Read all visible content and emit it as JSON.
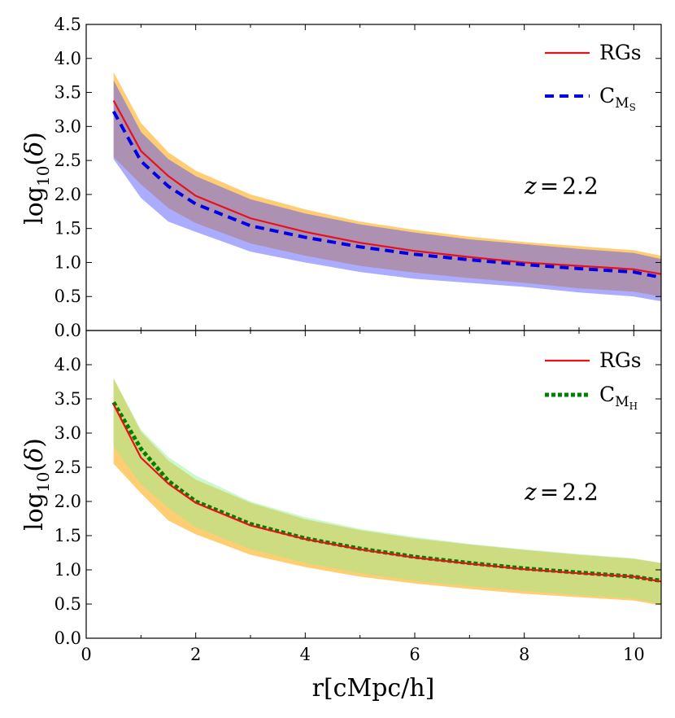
{
  "chart_data": [
    {
      "type": "line",
      "panel": "top",
      "ylabel_base": "log",
      "ylabel_sub": "10",
      "ylabel_arg": "δ",
      "ylabel": "log10(δ)",
      "xlabel": "",
      "xlim": [
        0,
        10.5
      ],
      "ylim": [
        0,
        4.5
      ],
      "yticks": [
        "0.0",
        "0.5",
        "1.0",
        "1.5",
        "2.0",
        "2.5",
        "3.0",
        "3.5",
        "4.0",
        "4.5"
      ],
      "annotation": {
        "var": "z",
        "eq": "=",
        "val": "2.2"
      },
      "legend_position": "top-right",
      "x": [
        0.5,
        1.0,
        1.5,
        2.0,
        3.0,
        4.0,
        5.0,
        6.0,
        7.0,
        8.0,
        9.0,
        10.0,
        10.5
      ],
      "series": [
        {
          "name": "RGs",
          "legend_main": "RGs",
          "legend_sub": "",
          "legend_subsub": "",
          "color": "#e8101a",
          "style": "solid",
          "values": [
            3.38,
            2.64,
            2.27,
            1.98,
            1.65,
            1.45,
            1.29,
            1.17,
            1.08,
            1.0,
            0.95,
            0.9,
            0.83
          ],
          "band": {
            "color": "#ffa500",
            "upper": [
              3.8,
              3.05,
              2.62,
              2.35,
              2.0,
              1.78,
              1.6,
              1.48,
              1.38,
              1.3,
              1.24,
              1.18,
              1.1
            ],
            "lower": [
              2.55,
              2.15,
              1.8,
              1.58,
              1.28,
              1.1,
              0.95,
              0.85,
              0.77,
              0.7,
              0.62,
              0.57,
              0.5
            ]
          }
        },
        {
          "name": "CMS",
          "legend_main": "C",
          "legend_sub": "M",
          "legend_subsub": "S",
          "color": "#0000e6",
          "style": "dashed",
          "values": [
            3.22,
            2.49,
            2.12,
            1.86,
            1.54,
            1.37,
            1.23,
            1.12,
            1.04,
            0.97,
            0.91,
            0.86,
            0.78
          ],
          "band": {
            "color": "#4848ff",
            "upper": [
              3.68,
              2.92,
              2.52,
              2.27,
              1.93,
              1.72,
              1.56,
              1.44,
              1.34,
              1.27,
              1.2,
              1.14,
              1.05
            ],
            "lower": [
              2.52,
              1.95,
              1.6,
              1.45,
              1.16,
              1.0,
              0.86,
              0.76,
              0.7,
              0.64,
              0.56,
              0.5,
              0.43
            ]
          }
        }
      ]
    },
    {
      "type": "line",
      "panel": "bottom",
      "ylabel_base": "log",
      "ylabel_sub": "10",
      "ylabel_arg": "δ",
      "ylabel": "log10(δ)",
      "xlabel": "r[cMpc/h]",
      "xlim": [
        0,
        10.5
      ],
      "ylim": [
        0,
        4.5
      ],
      "yticks": [
        "0.0",
        "0.5",
        "1.0",
        "1.5",
        "2.0",
        "2.5",
        "3.0",
        "3.5",
        "4.0"
      ],
      "xticks": [
        "0",
        "2",
        "4",
        "6",
        "8",
        "10"
      ],
      "annotation": {
        "var": "z",
        "eq": "=",
        "val": "2.2"
      },
      "legend_position": "top-right",
      "x": [
        0.5,
        1.0,
        1.5,
        2.0,
        3.0,
        4.0,
        5.0,
        6.0,
        7.0,
        8.0,
        9.0,
        10.0,
        10.5
      ],
      "series": [
        {
          "name": "RGs",
          "legend_main": "RGs",
          "legend_sub": "",
          "legend_subsub": "",
          "color": "#e8101a",
          "style": "solid",
          "values": [
            3.42,
            2.64,
            2.26,
            1.98,
            1.65,
            1.45,
            1.3,
            1.18,
            1.09,
            1.01,
            0.95,
            0.9,
            0.83
          ],
          "band": {
            "color": "#ffa500",
            "upper": [
              3.8,
              3.02,
              2.6,
              2.32,
              1.98,
              1.74,
              1.58,
              1.46,
              1.37,
              1.29,
              1.22,
              1.16,
              1.1
            ],
            "lower": [
              2.55,
              2.12,
              1.72,
              1.52,
              1.22,
              1.04,
              0.9,
              0.8,
              0.72,
              0.65,
              0.6,
              0.55,
              0.48
            ]
          }
        },
        {
          "name": "CMH",
          "legend_main": "C",
          "legend_sub": "M",
          "legend_subsub": "H",
          "color": "#008000",
          "style": "dotted",
          "values": [
            3.45,
            2.77,
            2.3,
            2.0,
            1.67,
            1.46,
            1.31,
            1.19,
            1.1,
            1.02,
            0.96,
            0.9,
            0.84
          ],
          "band": {
            "color": "#90ee90",
            "upper": [
              3.8,
              3.05,
              2.65,
              2.38,
              2.0,
              1.77,
              1.6,
              1.48,
              1.38,
              1.3,
              1.23,
              1.17,
              1.1
            ],
            "lower": [
              2.8,
              2.25,
              1.9,
              1.62,
              1.3,
              1.1,
              0.95,
              0.84,
              0.76,
              0.69,
              0.63,
              0.58,
              0.5
            ]
          }
        }
      ]
    }
  ]
}
